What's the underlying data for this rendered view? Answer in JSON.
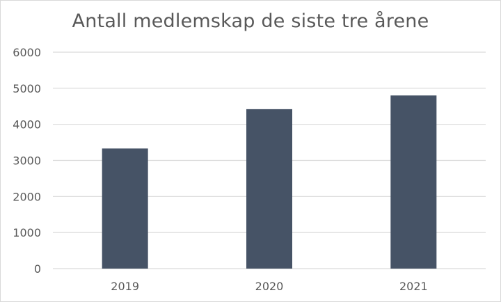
{
  "chart_data": {
    "type": "bar",
    "title": "Antall medlemskap de siste tre årene",
    "categories": [
      "2019",
      "2020",
      "2021"
    ],
    "values": [
      3330,
      4420,
      4800
    ],
    "xlabel": "",
    "ylabel": "",
    "ylim": [
      0,
      6000
    ],
    "yticks": [
      "0",
      "1000",
      "2000",
      "3000",
      "4000",
      "5000",
      "6000"
    ],
    "grid": true,
    "legend": "none",
    "colors": {
      "bar": "#465366",
      "grid": "#d9d9d9",
      "text": "#595959"
    }
  }
}
